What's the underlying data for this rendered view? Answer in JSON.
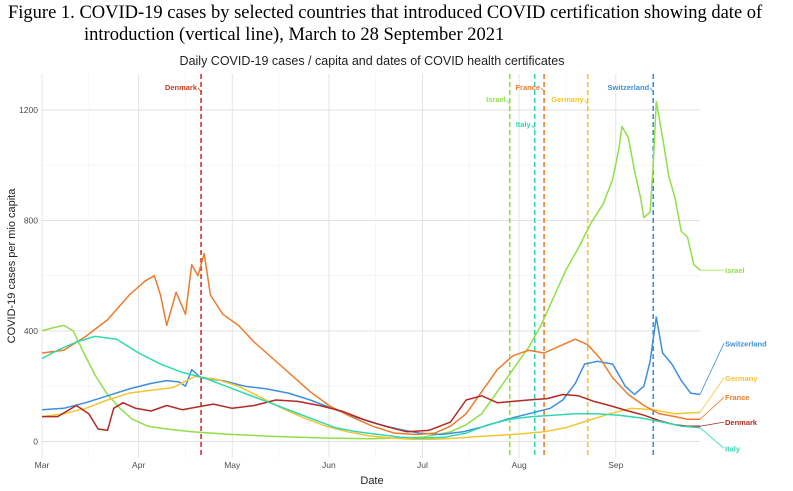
{
  "figure": {
    "caption_number": "Figure 1.",
    "caption_line1": "COVID-19 cases by selected countries that introduced COVID certification showing date of",
    "caption_line2": "introduction (vertical line), March to 28 September 2021"
  },
  "chart_data": {
    "type": "line",
    "title": "Daily COVID-19 cases / capita and dates of COVID health certificates",
    "xlabel": "Date",
    "ylabel": "COVID-19 cases per mio capita",
    "xlim": [
      "2021-03-01",
      "2021-09-28"
    ],
    "ylim": [
      -60,
      1330
    ],
    "grid": true,
    "legend": "direct labels at line ends",
    "x_ticks": [
      {
        "date": "2021-03-01",
        "label": "Mar"
      },
      {
        "date": "2021-04-01",
        "label": "Apr"
      },
      {
        "date": "2021-05-01",
        "label": "May"
      },
      {
        "date": "2021-06-01",
        "label": "Jun"
      },
      {
        "date": "2021-07-01",
        "label": "Jul"
      },
      {
        "date": "2021-08-01",
        "label": "Aug"
      },
      {
        "date": "2021-09-01",
        "label": "Sep"
      }
    ],
    "y_ticks": [
      0,
      400,
      800,
      1200
    ],
    "series": [
      {
        "name": "Israel",
        "color": "#8fe047",
        "points": [
          [
            "2021-03-01",
            400
          ],
          [
            "2021-03-04",
            410
          ],
          [
            "2021-03-08",
            420
          ],
          [
            "2021-03-11",
            400
          ],
          [
            "2021-03-14",
            330
          ],
          [
            "2021-03-18",
            240
          ],
          [
            "2021-03-22",
            170
          ],
          [
            "2021-03-26",
            120
          ],
          [
            "2021-03-30",
            80
          ],
          [
            "2021-04-04",
            55
          ],
          [
            "2021-04-10",
            45
          ],
          [
            "2021-04-18",
            35
          ],
          [
            "2021-05-01",
            25
          ],
          [
            "2021-05-15",
            18
          ],
          [
            "2021-06-01",
            12
          ],
          [
            "2021-06-15",
            10
          ],
          [
            "2021-07-01",
            15
          ],
          [
            "2021-07-10",
            35
          ],
          [
            "2021-07-15",
            60
          ],
          [
            "2021-07-20",
            100
          ],
          [
            "2021-07-25",
            180
          ],
          [
            "2021-07-30",
            260
          ],
          [
            "2021-08-04",
            340
          ],
          [
            "2021-08-08",
            420
          ],
          [
            "2021-08-12",
            520
          ],
          [
            "2021-08-16",
            620
          ],
          [
            "2021-08-20",
            700
          ],
          [
            "2021-08-24",
            790
          ],
          [
            "2021-08-28",
            860
          ],
          [
            "2021-08-31",
            950
          ],
          [
            "2021-09-02",
            1060
          ],
          [
            "2021-09-03",
            1140
          ],
          [
            "2021-09-05",
            1100
          ],
          [
            "2021-09-07",
            980
          ],
          [
            "2021-09-09",
            880
          ],
          [
            "2021-09-10",
            810
          ],
          [
            "2021-09-12",
            830
          ],
          [
            "2021-09-13",
            1000
          ],
          [
            "2021-09-14",
            1230
          ],
          [
            "2021-09-16",
            1100
          ],
          [
            "2021-09-18",
            960
          ],
          [
            "2021-09-20",
            880
          ],
          [
            "2021-09-22",
            760
          ],
          [
            "2021-09-24",
            740
          ],
          [
            "2021-09-26",
            640
          ],
          [
            "2021-09-28",
            620
          ]
        ]
      },
      {
        "name": "Switzerland",
        "color": "#3c8fe0",
        "points": [
          [
            "2021-03-01",
            115
          ],
          [
            "2021-03-08",
            120
          ],
          [
            "2021-03-15",
            140
          ],
          [
            "2021-03-22",
            165
          ],
          [
            "2021-03-29",
            190
          ],
          [
            "2021-04-05",
            210
          ],
          [
            "2021-04-10",
            220
          ],
          [
            "2021-04-14",
            215
          ],
          [
            "2021-04-16",
            200
          ],
          [
            "2021-04-18",
            260
          ],
          [
            "2021-04-21",
            230
          ],
          [
            "2021-04-28",
            220
          ],
          [
            "2021-05-05",
            200
          ],
          [
            "2021-05-12",
            190
          ],
          [
            "2021-05-19",
            175
          ],
          [
            "2021-05-26",
            150
          ],
          [
            "2021-06-02",
            120
          ],
          [
            "2021-06-09",
            90
          ],
          [
            "2021-06-16",
            65
          ],
          [
            "2021-06-23",
            45
          ],
          [
            "2021-06-30",
            30
          ],
          [
            "2021-07-07",
            25
          ],
          [
            "2021-07-14",
            35
          ],
          [
            "2021-07-21",
            55
          ],
          [
            "2021-07-28",
            80
          ],
          [
            "2021-08-04",
            100
          ],
          [
            "2021-08-11",
            120
          ],
          [
            "2021-08-15",
            150
          ],
          [
            "2021-08-19",
            210
          ],
          [
            "2021-08-22",
            280
          ],
          [
            "2021-08-26",
            290
          ],
          [
            "2021-08-31",
            280
          ],
          [
            "2021-09-04",
            200
          ],
          [
            "2021-09-07",
            170
          ],
          [
            "2021-09-10",
            200
          ],
          [
            "2021-09-12",
            290
          ],
          [
            "2021-09-14",
            450
          ],
          [
            "2021-09-16",
            320
          ],
          [
            "2021-09-19",
            280
          ],
          [
            "2021-09-22",
            220
          ],
          [
            "2021-09-25",
            175
          ],
          [
            "2021-09-28",
            170
          ]
        ]
      },
      {
        "name": "Germany",
        "color": "#f5c431",
        "points": [
          [
            "2021-03-01",
            90
          ],
          [
            "2021-03-08",
            100
          ],
          [
            "2021-03-15",
            120
          ],
          [
            "2021-03-22",
            150
          ],
          [
            "2021-03-29",
            175
          ],
          [
            "2021-04-05",
            185
          ],
          [
            "2021-04-12",
            195
          ],
          [
            "2021-04-19",
            235
          ],
          [
            "2021-04-26",
            225
          ],
          [
            "2021-05-03",
            200
          ],
          [
            "2021-05-10",
            160
          ],
          [
            "2021-05-17",
            120
          ],
          [
            "2021-05-24",
            85
          ],
          [
            "2021-05-31",
            55
          ],
          [
            "2021-06-07",
            35
          ],
          [
            "2021-06-14",
            20
          ],
          [
            "2021-06-21",
            12
          ],
          [
            "2021-06-28",
            8
          ],
          [
            "2021-07-05",
            8
          ],
          [
            "2021-07-12",
            12
          ],
          [
            "2021-07-19",
            18
          ],
          [
            "2021-07-26",
            22
          ],
          [
            "2021-08-02",
            28
          ],
          [
            "2021-08-09",
            35
          ],
          [
            "2021-08-16",
            50
          ],
          [
            "2021-08-23",
            75
          ],
          [
            "2021-08-30",
            100
          ],
          [
            "2021-09-06",
            120
          ],
          [
            "2021-09-13",
            115
          ],
          [
            "2021-09-20",
            100
          ],
          [
            "2021-09-28",
            105
          ]
        ]
      },
      {
        "name": "France",
        "color": "#f07a2a",
        "points": [
          [
            "2021-03-01",
            320
          ],
          [
            "2021-03-08",
            330
          ],
          [
            "2021-03-15",
            380
          ],
          [
            "2021-03-22",
            440
          ],
          [
            "2021-03-29",
            530
          ],
          [
            "2021-04-03",
            580
          ],
          [
            "2021-04-06",
            600
          ],
          [
            "2021-04-08",
            530
          ],
          [
            "2021-04-10",
            420
          ],
          [
            "2021-04-13",
            540
          ],
          [
            "2021-04-16",
            460
          ],
          [
            "2021-04-18",
            640
          ],
          [
            "2021-04-20",
            600
          ],
          [
            "2021-04-22",
            680
          ],
          [
            "2021-04-24",
            530
          ],
          [
            "2021-04-28",
            460
          ],
          [
            "2021-05-03",
            420
          ],
          [
            "2021-05-08",
            360
          ],
          [
            "2021-05-14",
            300
          ],
          [
            "2021-05-20",
            240
          ],
          [
            "2021-05-26",
            180
          ],
          [
            "2021-06-01",
            130
          ],
          [
            "2021-06-08",
            90
          ],
          [
            "2021-06-15",
            55
          ],
          [
            "2021-06-22",
            30
          ],
          [
            "2021-06-29",
            25
          ],
          [
            "2021-07-05",
            30
          ],
          [
            "2021-07-10",
            55
          ],
          [
            "2021-07-15",
            100
          ],
          [
            "2021-07-20",
            180
          ],
          [
            "2021-07-25",
            260
          ],
          [
            "2021-07-30",
            310
          ],
          [
            "2021-08-04",
            330
          ],
          [
            "2021-08-09",
            320
          ],
          [
            "2021-08-15",
            350
          ],
          [
            "2021-08-19",
            370
          ],
          [
            "2021-08-23",
            350
          ],
          [
            "2021-08-27",
            300
          ],
          [
            "2021-08-31",
            230
          ],
          [
            "2021-09-05",
            170
          ],
          [
            "2021-09-10",
            130
          ],
          [
            "2021-09-15",
            100
          ],
          [
            "2021-09-20",
            90
          ],
          [
            "2021-09-24",
            80
          ],
          [
            "2021-09-28",
            80
          ]
        ]
      },
      {
        "name": "Denmark",
        "color": "#b22a22",
        "points": [
          [
            "2021-03-01",
            90
          ],
          [
            "2021-03-06",
            90
          ],
          [
            "2021-03-12",
            130
          ],
          [
            "2021-03-16",
            100
          ],
          [
            "2021-03-19",
            45
          ],
          [
            "2021-03-22",
            40
          ],
          [
            "2021-03-24",
            120
          ],
          [
            "2021-03-27",
            140
          ],
          [
            "2021-03-31",
            120
          ],
          [
            "2021-04-05",
            110
          ],
          [
            "2021-04-10",
            130
          ],
          [
            "2021-04-15",
            115
          ],
          [
            "2021-04-20",
            125
          ],
          [
            "2021-04-25",
            135
          ],
          [
            "2021-05-01",
            120
          ],
          [
            "2021-05-08",
            130
          ],
          [
            "2021-05-15",
            150
          ],
          [
            "2021-05-22",
            145
          ],
          [
            "2021-05-29",
            130
          ],
          [
            "2021-06-05",
            110
          ],
          [
            "2021-06-12",
            80
          ],
          [
            "2021-06-19",
            55
          ],
          [
            "2021-06-26",
            35
          ],
          [
            "2021-07-03",
            40
          ],
          [
            "2021-07-10",
            70
          ],
          [
            "2021-07-15",
            150
          ],
          [
            "2021-07-20",
            165
          ],
          [
            "2021-07-25",
            140
          ],
          [
            "2021-07-30",
            145
          ],
          [
            "2021-08-04",
            150
          ],
          [
            "2021-08-10",
            155
          ],
          [
            "2021-08-15",
            170
          ],
          [
            "2021-08-20",
            165
          ],
          [
            "2021-08-25",
            145
          ],
          [
            "2021-08-30",
            130
          ],
          [
            "2021-09-05",
            110
          ],
          [
            "2021-09-10",
            95
          ],
          [
            "2021-09-15",
            75
          ],
          [
            "2021-09-20",
            60
          ],
          [
            "2021-09-24",
            55
          ],
          [
            "2021-09-28",
            55
          ]
        ]
      },
      {
        "name": "Italy",
        "color": "#2fd9b0",
        "points": [
          [
            "2021-03-01",
            300
          ],
          [
            "2021-03-06",
            330
          ],
          [
            "2021-03-12",
            360
          ],
          [
            "2021-03-18",
            380
          ],
          [
            "2021-03-25",
            370
          ],
          [
            "2021-04-01",
            320
          ],
          [
            "2021-04-08",
            280
          ],
          [
            "2021-04-15",
            250
          ],
          [
            "2021-04-22",
            230
          ],
          [
            "2021-04-29",
            200
          ],
          [
            "2021-05-06",
            170
          ],
          [
            "2021-05-13",
            140
          ],
          [
            "2021-05-20",
            110
          ],
          [
            "2021-05-27",
            80
          ],
          [
            "2021-06-03",
            50
          ],
          [
            "2021-06-10",
            35
          ],
          [
            "2021-06-17",
            25
          ],
          [
            "2021-06-24",
            15
          ],
          [
            "2021-07-01",
            12
          ],
          [
            "2021-07-08",
            15
          ],
          [
            "2021-07-15",
            30
          ],
          [
            "2021-07-22",
            60
          ],
          [
            "2021-07-29",
            80
          ],
          [
            "2021-08-05",
            90
          ],
          [
            "2021-08-12",
            95
          ],
          [
            "2021-08-19",
            100
          ],
          [
            "2021-08-26",
            100
          ],
          [
            "2021-09-02",
            95
          ],
          [
            "2021-09-09",
            85
          ],
          [
            "2021-09-16",
            70
          ],
          [
            "2021-09-22",
            55
          ],
          [
            "2021-09-28",
            50
          ]
        ]
      }
    ],
    "end_labels": [
      {
        "text": "Israel",
        "color": "#8fe047",
        "y": 620
      },
      {
        "text": "Switzerland",
        "color": "#3c8fe0",
        "y": 355
      },
      {
        "text": "Germany",
        "color": "#f5c431",
        "y": 230
      },
      {
        "text": "France",
        "color": "#f07a2a",
        "y": 160
      },
      {
        "text": "Denmark",
        "color": "#b22a22",
        "y": 70
      },
      {
        "text": "Italy",
        "color": "#2fd9b0",
        "y": -25
      }
    ],
    "certificate_dates": [
      {
        "country": "Denmark",
        "date": "2021-04-21",
        "color": "#cc3a1f",
        "label_y": 1280
      },
      {
        "country": "Israel",
        "date": "2021-07-29",
        "color": "#8fe047",
        "label_y": 1235
      },
      {
        "country": "Italy",
        "date": "2021-08-06",
        "color": "#2fd9b0",
        "label_y": 1145
      },
      {
        "country": "France",
        "date": "2021-08-09",
        "color": "#f07a2a",
        "label_y": 1280
      },
      {
        "country": "Germany",
        "date": "2021-08-23",
        "color": "#f5c431",
        "label_y": 1235
      },
      {
        "country": "Switzerland",
        "date": "2021-09-13",
        "color": "#3c8fe0",
        "label_y": 1280
      }
    ]
  }
}
